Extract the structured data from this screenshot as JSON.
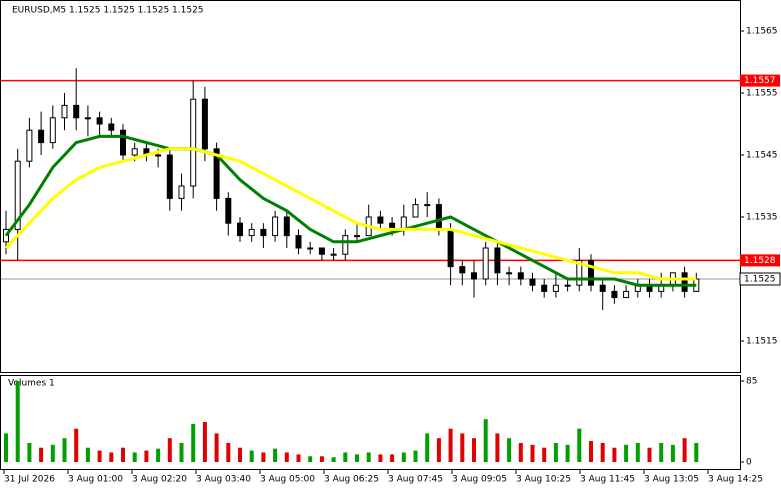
{
  "chart_data": [
    {
      "type": "candlestick",
      "title": "EURUSD,M5  1.1525 1.1525 1.1525 1.1525",
      "open": [
        1.1531,
        1.1533,
        1.1544,
        1.1549,
        1.1547,
        1.1551,
        1.1553,
        1.1551,
        1.1551,
        1.155,
        1.1549,
        1.1545,
        1.1546,
        1.1545,
        1.1545,
        1.1538,
        1.154,
        1.1554,
        1.1546,
        1.1538,
        1.1534,
        1.1532,
        1.1533,
        1.1532,
        1.1535,
        1.1532,
        1.153,
        1.153,
        1.1529,
        1.1529,
        1.1532,
        1.1532,
        1.1535,
        1.1534,
        1.1533,
        1.1535,
        1.1537,
        1.1537,
        1.1533,
        1.1527,
        1.1526,
        1.1525,
        1.153,
        1.1526,
        1.1526,
        1.1525,
        1.1524,
        1.1523,
        1.1524,
        1.1524,
        1.1528,
        1.1524,
        1.1523,
        1.1522,
        1.1523,
        1.1524,
        1.1523,
        1.1524,
        1.1526,
        1.1523
      ],
      "high": [
        1.1536,
        1.1546,
        1.1551,
        1.1552,
        1.1553,
        1.1555,
        1.1559,
        1.1553,
        1.1552,
        1.1551,
        1.155,
        1.1547,
        1.1547,
        1.1546,
        1.1546,
        1.1542,
        1.1557,
        1.1556,
        1.1547,
        1.1539,
        1.1535,
        1.1534,
        1.1534,
        1.1536,
        1.1536,
        1.1533,
        1.1531,
        1.153,
        1.153,
        1.1533,
        1.1534,
        1.1537,
        1.1536,
        1.1535,
        1.1537,
        1.1538,
        1.1539,
        1.1538,
        1.1534,
        1.1528,
        1.1528,
        1.1531,
        1.1531,
        1.1527,
        1.1527,
        1.1526,
        1.1525,
        1.1526,
        1.1525,
        1.153,
        1.1529,
        1.1525,
        1.1524,
        1.1524,
        1.1525,
        1.1525,
        1.1526,
        1.1526,
        1.1527,
        1.1526
      ],
      "low": [
        1.1529,
        1.1528,
        1.1543,
        1.1545,
        1.1546,
        1.1549,
        1.1549,
        1.1548,
        1.1548,
        1.1548,
        1.1544,
        1.1544,
        1.1544,
        1.1543,
        1.1536,
        1.1536,
        1.1538,
        1.1544,
        1.1536,
        1.1532,
        1.1531,
        1.1531,
        1.153,
        1.1531,
        1.153,
        1.1529,
        1.1529,
        1.1528,
        1.1528,
        1.1528,
        1.1531,
        1.1532,
        1.1533,
        1.1532,
        1.1532,
        1.1535,
        1.1535,
        1.1532,
        1.1524,
        1.1524,
        1.1522,
        1.1524,
        1.1524,
        1.1524,
        1.1524,
        1.1523,
        1.1522,
        1.1522,
        1.1523,
        1.1523,
        1.1523,
        1.152,
        1.1521,
        1.1522,
        1.1522,
        1.1522,
        1.1522,
        1.1523,
        1.1522,
        1.1523
      ],
      "close": [
        1.1533,
        1.1544,
        1.1549,
        1.1547,
        1.1551,
        1.1553,
        1.1551,
        1.1551,
        1.155,
        1.1549,
        1.1545,
        1.1546,
        1.1545,
        1.1545,
        1.1538,
        1.154,
        1.1554,
        1.1546,
        1.1538,
        1.1534,
        1.1532,
        1.1533,
        1.1532,
        1.1535,
        1.1532,
        1.153,
        1.153,
        1.1529,
        1.1529,
        1.1532,
        1.1532,
        1.1535,
        1.1534,
        1.1533,
        1.1535,
        1.1537,
        1.1537,
        1.1533,
        1.1527,
        1.1526,
        1.1525,
        1.153,
        1.1526,
        1.1526,
        1.1525,
        1.1524,
        1.1523,
        1.1524,
        1.1524,
        1.1528,
        1.1524,
        1.1523,
        1.1522,
        1.1523,
        1.1524,
        1.1523,
        1.1524,
        1.1526,
        1.1523,
        1.1525
      ],
      "lines": [
        {
          "color": "#008000",
          "x": [
            0,
            2,
            4,
            6,
            8,
            10,
            12,
            14,
            16,
            18,
            20,
            22,
            24,
            26,
            28,
            30,
            32,
            34,
            36,
            38,
            40,
            42,
            44,
            46,
            48,
            50,
            52,
            54,
            56,
            58,
            59
          ],
          "values": [
            1.1532,
            1.1537,
            1.1543,
            1.1547,
            1.1548,
            1.1548,
            1.1547,
            1.1546,
            1.1546,
            1.1545,
            1.1541,
            1.1538,
            1.1536,
            1.1533,
            1.1531,
            1.1531,
            1.1532,
            1.1533,
            1.1534,
            1.1535,
            1.1533,
            1.1531,
            1.1529,
            1.1527,
            1.1525,
            1.1525,
            1.1525,
            1.1524,
            1.1524,
            1.1524,
            1.1524
          ]
        },
        {
          "color": "#ffff00",
          "x": [
            0,
            2,
            4,
            6,
            8,
            10,
            12,
            14,
            16,
            18,
            20,
            22,
            24,
            26,
            28,
            30,
            32,
            34,
            36,
            38,
            40,
            42,
            44,
            46,
            48,
            50,
            52,
            54,
            56,
            58,
            59
          ],
          "values": [
            1.153,
            1.1534,
            1.1538,
            1.1541,
            1.1543,
            1.1544,
            1.1545,
            1.1546,
            1.1546,
            1.1545,
            1.1544,
            1.1542,
            1.154,
            1.1538,
            1.1536,
            1.1534,
            1.1533,
            1.1533,
            1.1533,
            1.1533,
            1.1532,
            1.1531,
            1.153,
            1.1529,
            1.1528,
            1.1527,
            1.1526,
            1.1526,
            1.1525,
            1.1525,
            1.1525
          ]
        }
      ],
      "levels": [
        {
          "value": 1.1557,
          "color": "#ff0000"
        },
        {
          "value": 1.1528,
          "color": "#ff0000"
        }
      ],
      "current_price": 1.1525,
      "up_color": "#000000",
      "down_color": "#000000",
      "ylim": [
        1.151,
        1.157
      ],
      "yticks": [
        1.1565,
        1.1555,
        1.1545,
        1.1535,
        1.1515
      ],
      "x_labels": [
        "31 Jul 2026",
        "3 Aug 01:00",
        "3 Aug 02:20",
        "3 Aug 03:40",
        "3 Aug 05:00",
        "3 Aug 06:25",
        "3 Aug 07:45",
        "3 Aug 09:05",
        "3 Aug 10:25",
        "3 Aug 11:45",
        "3 Aug 13:05",
        "3 Aug 14:25"
      ]
    },
    {
      "type": "bar",
      "title": "Volumes 1",
      "up_color": "#00a000",
      "down_color": "#e00000",
      "values": [
        30,
        85,
        20,
        15,
        18,
        25,
        35,
        15,
        12,
        10,
        15,
        10,
        12,
        14,
        25,
        20,
        40,
        42,
        30,
        20,
        15,
        12,
        10,
        14,
        10,
        8,
        6,
        6,
        5,
        10,
        8,
        10,
        8,
        8,
        10,
        12,
        30,
        25,
        35,
        30,
        25,
        45,
        30,
        25,
        20,
        18,
        15,
        20,
        18,
        35,
        22,
        20,
        15,
        18,
        20,
        15,
        20,
        18,
        25,
        20
      ],
      "ylim": [
        0,
        85
      ],
      "yticks": [
        85,
        0
      ]
    }
  ]
}
